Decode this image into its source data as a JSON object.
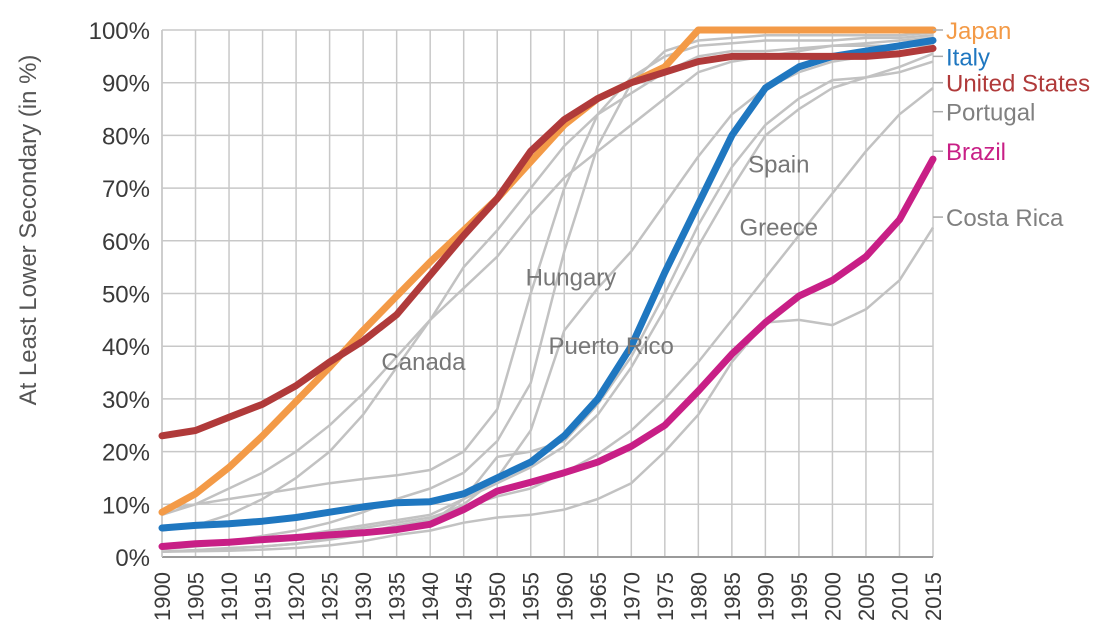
{
  "chart_data": {
    "type": "line",
    "title": "",
    "xlabel": "",
    "ylabel": "At Least Lower Secondary (in %)",
    "x": [
      1900,
      1905,
      1910,
      1915,
      1920,
      1925,
      1930,
      1935,
      1940,
      1945,
      1950,
      1955,
      1960,
      1965,
      1970,
      1975,
      1980,
      1985,
      1990,
      1995,
      2000,
      2005,
      2010,
      2015
    ],
    "xlim": [
      1900,
      2015
    ],
    "ylim": [
      0,
      100
    ],
    "yticks": [
      0,
      10,
      20,
      30,
      40,
      50,
      60,
      70,
      80,
      90,
      100
    ],
    "y_tick_labels": [
      "0%",
      "10%",
      "20%",
      "30%",
      "40%",
      "50%",
      "60%",
      "70%",
      "80%",
      "90%",
      "100%"
    ],
    "x_tick_labels": [
      "1900",
      "1905",
      "1910",
      "1915",
      "1920",
      "1925",
      "1930",
      "1935",
      "1940",
      "1945",
      "1950",
      "1955",
      "1960",
      "1965",
      "1970",
      "1975",
      "1980",
      "1985",
      "1990",
      "1995",
      "2000",
      "2005",
      "2010",
      "2015"
    ],
    "grid": true,
    "highlighted_series": [
      {
        "name": "Japan",
        "color": "#f39a47",
        "values": [
          8.5,
          12,
          17,
          23,
          29.5,
          36,
          43,
          49.5,
          56,
          62,
          68,
          75,
          82,
          87,
          90,
          93,
          100,
          100,
          100,
          100,
          100,
          100,
          100,
          100
        ]
      },
      {
        "name": "Italy",
        "color": "#1f77c0",
        "values": [
          5.5,
          6,
          6.3,
          6.8,
          7.5,
          8.5,
          9.5,
          10.3,
          10.5,
          12,
          15,
          18,
          23,
          30,
          40,
          54,
          67,
          80,
          89,
          93,
          95,
          96,
          97,
          98
        ]
      },
      {
        "name": "United States",
        "color": "#b03a3a",
        "values": [
          23,
          24,
          26.5,
          29,
          32.5,
          37,
          41,
          46,
          53.5,
          61,
          68,
          77,
          83,
          87,
          90,
          92,
          94,
          95,
          95,
          95,
          95,
          95,
          95.5,
          96.5
        ]
      },
      {
        "name": "Brazil",
        "color": "#c81f86",
        "values": [
          2,
          2.5,
          2.8,
          3.3,
          3.7,
          4.2,
          4.6,
          5.2,
          6.2,
          9,
          12.5,
          14.2,
          16,
          18,
          21,
          25,
          31.5,
          38.5,
          44.5,
          49.5,
          52.5,
          57,
          64,
          75.5
        ]
      }
    ],
    "background_series": [
      {
        "label": "Portugal",
        "values": [
          1,
          1.1,
          1.2,
          1.4,
          1.7,
          2.2,
          3,
          4.2,
          5,
          6.5,
          7.5,
          8,
          9,
          11,
          14,
          20,
          27,
          37,
          44.5,
          45,
          44,
          47,
          52.5,
          62.5
        ]
      },
      {
        "label": "Hungary",
        "values": [
          5,
          6,
          8,
          11,
          15,
          20,
          27,
          36,
          45,
          55,
          62,
          70,
          78,
          84,
          88,
          92,
          95,
          96,
          96,
          96.5,
          97,
          97,
          97,
          97
        ]
      },
      {
        "label": "Canada",
        "values": [
          8,
          10,
          13,
          16,
          20,
          25,
          31,
          38,
          45,
          51,
          57,
          65,
          72,
          77,
          82,
          87,
          92,
          94,
          95,
          96,
          97,
          97.5,
          98,
          98.5
        ]
      },
      {
        "label": "Spain",
        "values": [
          2,
          2.5,
          3,
          3.5,
          4,
          5,
          6,
          7,
          8,
          11,
          14,
          17,
          21,
          27,
          36,
          47,
          59,
          70,
          80,
          85,
          89,
          91,
          92,
          94
        ]
      },
      {
        "label": "Greece",
        "values": [
          1.5,
          2,
          2.5,
          3,
          3.5,
          4.5,
          5.5,
          6.5,
          7.5,
          9.5,
          11.5,
          13,
          16,
          19.5,
          24,
          30,
          37,
          45,
          53,
          61,
          69,
          77,
          84,
          89
        ]
      },
      {
        "label": "Puerto Rico",
        "values": [
          1,
          1.3,
          1.7,
          2,
          2.5,
          3.5,
          4.5,
          6,
          7,
          10,
          15,
          24,
          43,
          51,
          58,
          67,
          76,
          84,
          89,
          92,
          94,
          95,
          95.5,
          96
        ]
      },
      {
        "label": "Costa Rica",
        "values": [
          1,
          1.3,
          1.6,
          2,
          2.5,
          3.3,
          4.3,
          5.5,
          6.5,
          11,
          19,
          20,
          22,
          29,
          38,
          50,
          63,
          74,
          82,
          87,
          90.5,
          91,
          93,
          95.5
        ]
      },
      {
        "label": "",
        "values": [
          9,
          10,
          11,
          12,
          13,
          14,
          14.8,
          15.5,
          16.5,
          20,
          28,
          50,
          70,
          84,
          91,
          95,
          97,
          97.5,
          98,
          98,
          98,
          98.5,
          98.5,
          99
        ]
      },
      {
        "label": "",
        "values": [
          2,
          2.5,
          3,
          4,
          5,
          6.5,
          8.5,
          11,
          13,
          16,
          22,
          33,
          58,
          78,
          90,
          96,
          98,
          98.5,
          99,
          99,
          99,
          99,
          99,
          99.5
        ]
      }
    ],
    "annotations": [
      {
        "text": "Spain",
        "x": 1992,
        "y": 73
      },
      {
        "text": "Greece",
        "x": 1992,
        "y": 61
      },
      {
        "text": "Hungary",
        "x": 1961,
        "y": 51.5
      },
      {
        "text": "Puerto Rico",
        "x": 1967,
        "y": 38.5
      },
      {
        "text": "Canada",
        "x": 1939,
        "y": 35.5
      }
    ],
    "legend_placement": "right",
    "legend": [
      {
        "label": "Japan",
        "color": "#f39a47",
        "y": 100
      },
      {
        "label": "Italy",
        "color": "#1f77c0",
        "y": 95
      },
      {
        "label": "United States",
        "color": "#b03a3a",
        "y": 90
      },
      {
        "label": "Portugal",
        "color": "#808080",
        "y": 84.5
      },
      {
        "label": "Brazil",
        "color": "#c81f86",
        "y": 77
      },
      {
        "label": "Costa Rica",
        "color": "#808080",
        "y": 64.5
      }
    ]
  }
}
